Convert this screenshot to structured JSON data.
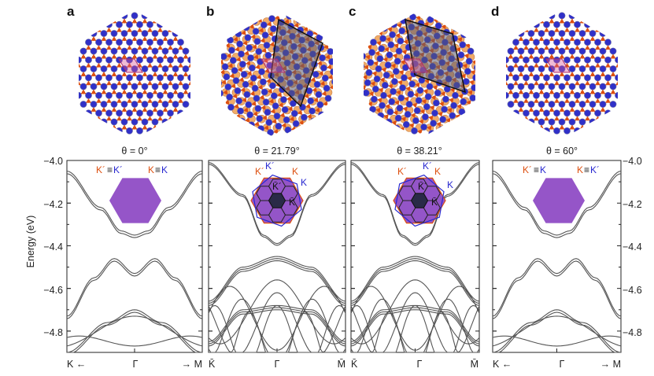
{
  "panels": [
    {
      "label": "a",
      "theta": "θ = 0°",
      "inset_left": {
        "a": "K´",
        "b": "≡",
        "c": "K´"
      },
      "inset_right": {
        "a": "K",
        "b": "≡",
        "c": "K"
      },
      "kpath": [
        "K ←",
        "Γ",
        "→ M"
      ]
    },
    {
      "label": "b",
      "theta": "θ = 21.79°",
      "inset_marks": [
        "K´",
        "K´",
        "K",
        "K",
        "K̄´",
        "K̄"
      ],
      "kpath": [
        "K̄",
        "Γ",
        "M̄"
      ]
    },
    {
      "label": "c",
      "theta": "θ = 38.21°",
      "inset_marks": [
        "K´",
        "K´",
        "K",
        "K",
        "K̄´",
        "K̄"
      ],
      "kpath": [
        "K̄",
        "Γ",
        "M̄"
      ]
    },
    {
      "label": "d",
      "theta": "θ = 60°",
      "inset_left": {
        "a": "K´",
        "b": "≡",
        "c": "K"
      },
      "inset_right": {
        "a": "K",
        "b": "≡",
        "c": "K´"
      },
      "kpath": [
        "K ←",
        "Γ",
        "→ M"
      ]
    }
  ],
  "y_axis": {
    "label": "Energy (eV)",
    "ticks": [
      "−4.0",
      "−4.2",
      "−4.4",
      "−4.6",
      "−4.8"
    ]
  },
  "colors": {
    "orange": "#dd5010",
    "blue": "#2828d0",
    "purple": "#9555c8",
    "dark": "#2a2a48",
    "line": "#555555"
  },
  "chart_data": [
    {
      "type": "line",
      "title": "θ = 0°",
      "xlabel": "",
      "ylabel": "Energy (eV)",
      "ylim": [
        -4.9,
        -4.0
      ],
      "x_ticks": [
        "K ←",
        "Γ",
        "→ M"
      ],
      "series": [
        {
          "x": [
            -1.0,
            -0.5,
            -0.2,
            0.0,
            0.2,
            0.5,
            1.0
          ],
          "y": [
            -4.05,
            -4.22,
            -4.33,
            -4.35,
            -4.33,
            -4.22,
            -4.05
          ]
        },
        {
          "x": [
            -1.0,
            -0.6,
            -0.3,
            0.0,
            0.3,
            0.6,
            1.0
          ],
          "y": [
            -4.73,
            -4.55,
            -4.46,
            -4.53,
            -4.46,
            -4.55,
            -4.73
          ]
        },
        {
          "x": [
            -1.0,
            -0.4,
            0.0,
            0.4,
            1.0
          ],
          "y": [
            -4.9,
            -4.76,
            -4.7,
            -4.76,
            -4.9
          ]
        }
      ]
    },
    {
      "type": "line",
      "title": "θ = 21.79°",
      "xlabel": "",
      "ylabel": "Energy (eV)",
      "ylim": [
        -4.9,
        -4.0
      ],
      "x_ticks": [
        "K̄",
        "Γ",
        "M̄"
      ],
      "series": [
        {
          "x": [
            -1.0,
            -0.5,
            -0.2,
            0.0,
            0.2,
            0.5,
            1.0
          ],
          "y": [
            -4.01,
            -4.16,
            -4.35,
            -4.39,
            -4.35,
            -4.16,
            -4.01
          ]
        },
        {
          "x": [
            -1.0,
            -0.5,
            0.0,
            0.5,
            1.0
          ],
          "y": [
            -4.66,
            -4.5,
            -4.45,
            -4.5,
            -4.66
          ]
        },
        {
          "x": [
            -1.0,
            -0.5,
            0.0,
            0.5,
            1.0
          ],
          "y": [
            -4.85,
            -4.7,
            -4.68,
            -4.7,
            -4.85
          ]
        }
      ]
    },
    {
      "type": "line",
      "title": "θ = 38.21°",
      "xlabel": "",
      "ylabel": "Energy (eV)",
      "ylim": [
        -4.9,
        -4.0
      ],
      "x_ticks": [
        "K̄",
        "Γ",
        "M̄"
      ],
      "series": [
        {
          "x": [
            -1.0,
            -0.5,
            -0.2,
            0.0,
            0.2,
            0.5,
            1.0
          ],
          "y": [
            -4.01,
            -4.16,
            -4.35,
            -4.39,
            -4.35,
            -4.16,
            -4.01
          ]
        },
        {
          "x": [
            -1.0,
            -0.5,
            0.0,
            0.5,
            1.0
          ],
          "y": [
            -4.66,
            -4.5,
            -4.45,
            -4.5,
            -4.66
          ]
        },
        {
          "x": [
            -1.0,
            -0.5,
            0.0,
            0.5,
            1.0
          ],
          "y": [
            -4.85,
            -4.7,
            -4.68,
            -4.7,
            -4.85
          ]
        }
      ]
    },
    {
      "type": "line",
      "title": "θ = 60°",
      "xlabel": "",
      "ylabel": "Energy (eV)",
      "ylim": [
        -4.9,
        -4.0
      ],
      "x_ticks": [
        "K ←",
        "Γ",
        "→ M"
      ],
      "series": [
        {
          "x": [
            -1.0,
            -0.5,
            -0.2,
            0.0,
            0.2,
            0.5,
            1.0
          ],
          "y": [
            -4.05,
            -4.22,
            -4.33,
            -4.35,
            -4.33,
            -4.22,
            -4.05
          ]
        },
        {
          "x": [
            -1.0,
            -0.6,
            -0.3,
            0.0,
            0.3,
            0.6,
            1.0
          ],
          "y": [
            -4.73,
            -4.55,
            -4.46,
            -4.53,
            -4.46,
            -4.55,
            -4.73
          ]
        },
        {
          "x": [
            -1.0,
            -0.4,
            0.0,
            0.4,
            1.0
          ],
          "y": [
            -4.9,
            -4.76,
            -4.7,
            -4.76,
            -4.9
          ]
        }
      ]
    }
  ]
}
